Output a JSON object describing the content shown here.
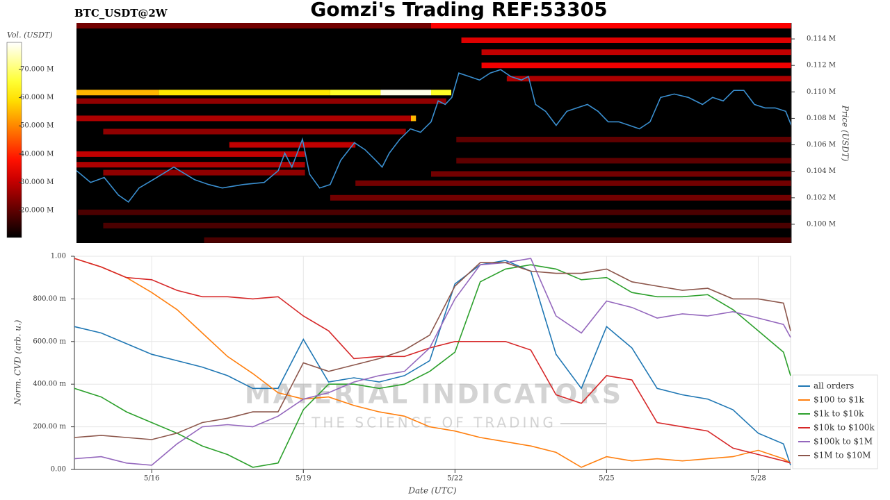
{
  "chart_data": [
    {
      "type": "heatmap",
      "title": "Gomzi's Trading REF:53305",
      "subtitle": "BTC_USDT@2W",
      "ylabel": "Price (USDT)",
      "colorbar_label": "Vol. (USDT)",
      "xlim": [
        14.47,
        28.64
      ],
      "ylim": [
        98580,
        115210
      ],
      "yticks": [
        {
          "value": 100000,
          "label": "0.100 M"
        },
        {
          "value": 102000,
          "label": "0.102 M"
        },
        {
          "value": 104000,
          "label": "0.104 M"
        },
        {
          "value": 106000,
          "label": "0.106 M"
        },
        {
          "value": 108000,
          "label": "0.108 M"
        },
        {
          "value": 110000,
          "label": "0.110 M"
        },
        {
          "value": 112000,
          "label": "0.112 M"
        },
        {
          "value": 114000,
          "label": "0.114 M"
        }
      ],
      "clim": [
        10400000,
        79600000
      ],
      "cticks": [
        {
          "value": 20000000,
          "label": "20.000 M"
        },
        {
          "value": 30000000,
          "label": "30.000 M"
        },
        {
          "value": 40000000,
          "label": "40.000 M"
        },
        {
          "value": 50000000,
          "label": "50.000 M"
        },
        {
          "value": 60000000,
          "label": "60.000 M"
        },
        {
          "value": 70000000,
          "label": "70.000 M"
        }
      ],
      "bands": [
        {
          "price": 115000,
          "start": 14.47,
          "end": 21.5,
          "volume": 22000000
        },
        {
          "price": 115000,
          "start": 21.5,
          "end": 28.64,
          "volume": 36000000
        },
        {
          "price": 113900,
          "start": 22.1,
          "end": 28.64,
          "volume": 33000000
        },
        {
          "price": 113000,
          "start": 22.5,
          "end": 28.64,
          "volume": 30000000
        },
        {
          "price": 112000,
          "start": 22.5,
          "end": 28.64,
          "volume": 35000000
        },
        {
          "price": 111000,
          "start": 23.0,
          "end": 28.64,
          "volume": 28000000
        },
        {
          "price": 109950,
          "start": 14.47,
          "end": 16.1,
          "volume": 55000000
        },
        {
          "price": 109950,
          "start": 16.1,
          "end": 19.5,
          "volume": 60000000
        },
        {
          "price": 109950,
          "start": 19.5,
          "end": 20.5,
          "volume": 65000000
        },
        {
          "price": 109950,
          "start": 20.5,
          "end": 21.5,
          "volume": 78000000
        },
        {
          "price": 109950,
          "start": 21.5,
          "end": 21.9,
          "volume": 65000000
        },
        {
          "price": 109300,
          "start": 14.47,
          "end": 21.8,
          "volume": 25000000
        },
        {
          "price": 108000,
          "start": 14.47,
          "end": 21.1,
          "volume": 28000000
        },
        {
          "price": 108000,
          "start": 21.1,
          "end": 21.2,
          "volume": 55000000
        },
        {
          "price": 107000,
          "start": 15.0,
          "end": 21.0,
          "volume": 25000000
        },
        {
          "price": 106400,
          "start": 22.0,
          "end": 28.64,
          "volume": 20000000
        },
        {
          "price": 106000,
          "start": 17.5,
          "end": 20.0,
          "volume": 30000000
        },
        {
          "price": 105300,
          "start": 14.47,
          "end": 19.0,
          "volume": 30000000
        },
        {
          "price": 104800,
          "start": 22.0,
          "end": 28.64,
          "volume": 20000000
        },
        {
          "price": 104500,
          "start": 14.47,
          "end": 19.0,
          "volume": 28000000
        },
        {
          "price": 103900,
          "start": 15.0,
          "end": 19.0,
          "volume": 25000000
        },
        {
          "price": 103800,
          "start": 21.5,
          "end": 28.64,
          "volume": 22000000
        },
        {
          "price": 103100,
          "start": 20.0,
          "end": 28.64,
          "volume": 22000000
        },
        {
          "price": 102000,
          "start": 19.5,
          "end": 28.64,
          "volume": 22000000
        },
        {
          "price": 100900,
          "start": 14.5,
          "end": 28.64,
          "volume": 18000000
        },
        {
          "price": 99900,
          "start": 15.0,
          "end": 28.64,
          "volume": 18000000
        },
        {
          "price": 98800,
          "start": 17.0,
          "end": 28.64,
          "volume": 18000000
        }
      ],
      "price_line": {
        "color": "#3a8fd0",
        "x": [
          14.47,
          14.75,
          15.02,
          15.3,
          15.5,
          15.71,
          15.99,
          16.4,
          16.81,
          17.09,
          17.36,
          17.78,
          18.19,
          18.47,
          18.6,
          18.74,
          18.95,
          19.09,
          19.29,
          19.5,
          19.71,
          19.98,
          20.19,
          20.4,
          20.53,
          20.67,
          20.88,
          21.09,
          21.29,
          21.5,
          21.64,
          21.78,
          21.91,
          22.05,
          22.26,
          22.46,
          22.67,
          22.88,
          23.08,
          23.29,
          23.43,
          23.57,
          23.77,
          23.98,
          24.19,
          24.39,
          24.6,
          24.81,
          25.01,
          25.22,
          25.43,
          25.63,
          25.84,
          26.05,
          26.32,
          26.6,
          26.88,
          27.08,
          27.29,
          27.5,
          27.7,
          27.91,
          28.12,
          28.32,
          28.53,
          28.64
        ],
        "values": [
          104050,
          103160,
          103530,
          102210,
          101680,
          102740,
          103370,
          104320,
          103370,
          103000,
          102740,
          103000,
          103160,
          104050,
          105370,
          104320,
          106420,
          103790,
          102740,
          103000,
          104840,
          106160,
          105630,
          104840,
          104320,
          105370,
          106420,
          107210,
          106950,
          107740,
          109320,
          109050,
          109580,
          111420,
          111160,
          110890,
          111420,
          111680,
          111160,
          110890,
          111160,
          109050,
          108530,
          107470,
          108530,
          108790,
          109050,
          108530,
          107740,
          107740,
          107470,
          107210,
          107740,
          109580,
          109840,
          109580,
          109050,
          109580,
          109320,
          110110,
          110110,
          109050,
          108790,
          108790,
          108530,
          107470
        ]
      }
    },
    {
      "type": "line",
      "ylabel": "Norm. CVD (arb. u.)",
      "xlabel": "Date (UTC)",
      "xlim": [
        14.47,
        28.64
      ],
      "xticks": [
        {
          "value": 16,
          "label": "5/16"
        },
        {
          "value": 19,
          "label": "5/19"
        },
        {
          "value": 22,
          "label": "5/22"
        },
        {
          "value": 25,
          "label": "5/25"
        },
        {
          "value": 28,
          "label": "5/28"
        }
      ],
      "ylim": [
        0,
        1
      ],
      "yticks": [
        {
          "value": 0,
          "label": "0.00"
        },
        {
          "value": 0.2,
          "label": "200.00 m"
        },
        {
          "value": 0.4,
          "label": "400.00 m"
        },
        {
          "value": 0.6,
          "label": "600.00 m"
        },
        {
          "value": 0.8,
          "label": "800.00 m"
        },
        {
          "value": 1,
          "label": "1.00"
        }
      ],
      "grid": true,
      "legend": "lower right",
      "watermark": {
        "title": "MATERIAL INDICATORS",
        "subtitle": "THE SCIENCE OF TRADING"
      },
      "x": [
        14.47,
        15,
        15.5,
        16,
        16.5,
        17,
        17.5,
        18,
        18.5,
        19,
        19.5,
        20,
        20.5,
        21,
        21.5,
        22,
        22.5,
        23,
        23.5,
        24,
        24.5,
        25,
        25.5,
        26,
        26.5,
        27,
        27.5,
        28,
        28.5,
        28.64
      ],
      "series": [
        {
          "name": "all orders",
          "color": "#1f77b4",
          "values": [
            0.67,
            0.64,
            0.59,
            0.54,
            0.51,
            0.48,
            0.44,
            0.38,
            0.38,
            0.61,
            0.41,
            0.43,
            0.41,
            0.44,
            0.51,
            0.87,
            0.96,
            0.98,
            0.93,
            0.54,
            0.38,
            0.67,
            0.57,
            0.38,
            0.35,
            0.33,
            0.28,
            0.17,
            0.12,
            0.02
          ]
        },
        {
          "name": "$100 to $1k",
          "color": "#ff7f0e",
          "values": [
            0.99,
            0.95,
            0.9,
            0.83,
            0.75,
            0.64,
            0.53,
            0.45,
            0.36,
            0.33,
            0.34,
            0.3,
            0.27,
            0.25,
            0.2,
            0.18,
            0.15,
            0.13,
            0.11,
            0.08,
            0.01,
            0.06,
            0.04,
            0.05,
            0.04,
            0.05,
            0.06,
            0.09,
            0.05,
            0.03
          ]
        },
        {
          "name": "$1k to $10k",
          "color": "#2ca02c",
          "values": [
            0.38,
            0.34,
            0.27,
            0.22,
            0.17,
            0.11,
            0.07,
            0.01,
            0.03,
            0.28,
            0.4,
            0.4,
            0.38,
            0.4,
            0.46,
            0.55,
            0.88,
            0.94,
            0.96,
            0.94,
            0.89,
            0.9,
            0.83,
            0.81,
            0.81,
            0.82,
            0.75,
            0.65,
            0.55,
            0.44
          ]
        },
        {
          "name": "$10k to $100k",
          "color": "#d62728",
          "values": [
            0.99,
            0.95,
            0.9,
            0.89,
            0.84,
            0.81,
            0.81,
            0.8,
            0.81,
            0.72,
            0.65,
            0.52,
            0.53,
            0.53,
            0.57,
            0.6,
            0.6,
            0.6,
            0.56,
            0.35,
            0.31,
            0.44,
            0.42,
            0.22,
            0.2,
            0.18,
            0.1,
            0.07,
            0.04,
            0.03
          ]
        },
        {
          "name": "$100k to $1M",
          "color": "#9467bd",
          "values": [
            0.05,
            0.06,
            0.03,
            0.02,
            0.12,
            0.2,
            0.21,
            0.2,
            0.25,
            0.33,
            0.36,
            0.41,
            0.44,
            0.46,
            0.57,
            0.8,
            0.96,
            0.97,
            0.99,
            0.72,
            0.64,
            0.79,
            0.76,
            0.71,
            0.73,
            0.72,
            0.74,
            0.71,
            0.68,
            0.62
          ]
        },
        {
          "name": "$1M to $10M",
          "color": "#8c564b",
          "values": [
            0.15,
            0.16,
            0.15,
            0.14,
            0.17,
            0.22,
            0.24,
            0.27,
            0.27,
            0.5,
            0.46,
            0.49,
            0.52,
            0.56,
            0.63,
            0.86,
            0.97,
            0.97,
            0.93,
            0.92,
            0.92,
            0.94,
            0.88,
            0.86,
            0.84,
            0.85,
            0.8,
            0.8,
            0.78,
            0.65
          ]
        }
      ]
    }
  ]
}
